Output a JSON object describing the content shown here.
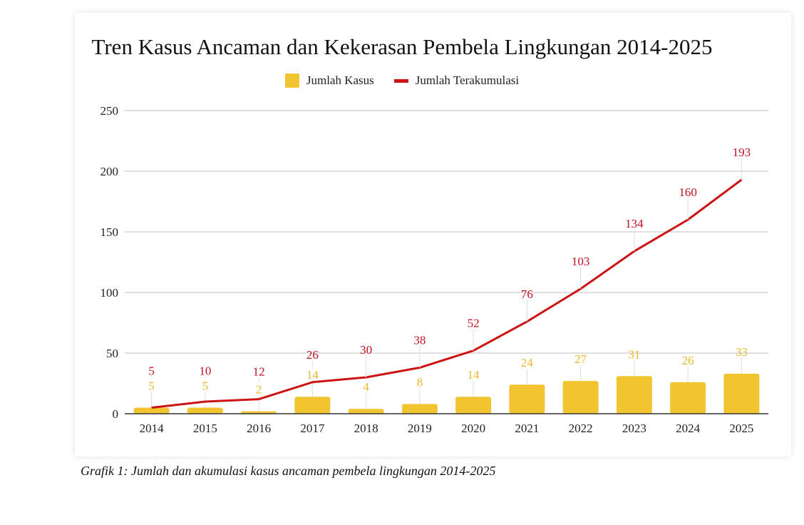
{
  "chart_data": {
    "type": "bar+line",
    "title": "Tren Kasus Ancaman dan Kekerasan Pembela Lingkungan 2014-2025",
    "categories": [
      "2014",
      "2015",
      "2016",
      "2017",
      "2018",
      "2019",
      "2020",
      "2021",
      "2022",
      "2023",
      "2024",
      "2025"
    ],
    "series": [
      {
        "name": "Jumlah Kasus",
        "type": "bar",
        "color": "#f2c430",
        "label_color": "#e8b92a",
        "values": [
          5,
          5,
          2,
          14,
          4,
          8,
          14,
          24,
          27,
          31,
          26,
          33
        ]
      },
      {
        "name": "Jumlah Terakumulasi",
        "type": "line",
        "color": "#cc1414",
        "label_color": "#c01020",
        "values": [
          5,
          10,
          12,
          26,
          30,
          38,
          52,
          76,
          103,
          134,
          160,
          193
        ]
      }
    ],
    "ylim": [
      0,
      250
    ],
    "yticks": [
      0,
      50,
      100,
      150,
      200,
      250
    ],
    "grid": true,
    "legend": "top-center",
    "xlabel": "",
    "ylabel": ""
  },
  "caption": {
    "label": "Grafik 1",
    "text": ": Jumlah dan akumulasi kasus ancaman pembela lingkungan 2014-2025"
  }
}
